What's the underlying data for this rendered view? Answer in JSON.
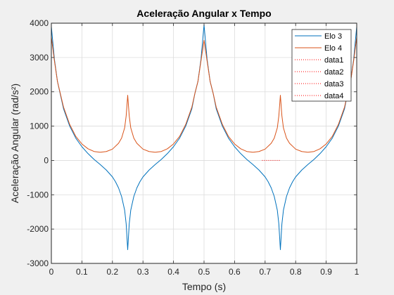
{
  "chart_data": {
    "type": "line",
    "title": "Aceleração Angular x Tempo",
    "xlabel": "Tempo (s)",
    "ylabel": "Aceleração Angular (rad/s²)",
    "xlim": [
      0,
      1
    ],
    "ylim": [
      -3000,
      4000
    ],
    "xticks": [
      0,
      0.1,
      0.2,
      0.3,
      0.4,
      0.5,
      0.6,
      0.7,
      0.8,
      0.9,
      1
    ],
    "xtick_labels": [
      "0",
      "0.1",
      "0.2",
      "0.3",
      "0.4",
      "0.5",
      "0.6",
      "0.7",
      "0.8",
      "0.9",
      "1"
    ],
    "yticks": [
      -3000,
      -2000,
      -1000,
      0,
      1000,
      2000,
      3000,
      4000
    ],
    "ytick_labels": [
      "-3000",
      "-2000",
      "-1000",
      "0",
      "1000",
      "2000",
      "3000",
      "4000"
    ],
    "grid": true,
    "legend_position": "top-right",
    "series": [
      {
        "name": "Elo 3",
        "color": "#0072BD",
        "style": "solid",
        "x": [
          0,
          0.01,
          0.02,
          0.04,
          0.06,
          0.08,
          0.1,
          0.12,
          0.14,
          0.16,
          0.18,
          0.2,
          0.21,
          0.22,
          0.23,
          0.24,
          0.245,
          0.25,
          0.255,
          0.26,
          0.27,
          0.28,
          0.29,
          0.3,
          0.32,
          0.34,
          0.36,
          0.38,
          0.4,
          0.42,
          0.44,
          0.46,
          0.47,
          0.48,
          0.49,
          0.5,
          0.51,
          0.52,
          0.53,
          0.54,
          0.56,
          0.58,
          0.6,
          0.62,
          0.64,
          0.66,
          0.68,
          0.7,
          0.71,
          0.72,
          0.73,
          0.74,
          0.745,
          0.75,
          0.755,
          0.76,
          0.77,
          0.78,
          0.79,
          0.8,
          0.82,
          0.84,
          0.86,
          0.88,
          0.9,
          0.92,
          0.94,
          0.96,
          0.97,
          0.98,
          0.99,
          1
        ],
        "y": [
          3900,
          2950,
          2300,
          1500,
          1000,
          650,
          400,
          200,
          30,
          -120,
          -280,
          -480,
          -620,
          -800,
          -1050,
          -1450,
          -1850,
          -2600,
          -1850,
          -1450,
          -1050,
          -800,
          -620,
          -480,
          -280,
          -120,
          30,
          200,
          400,
          650,
          1000,
          1500,
          1950,
          2300,
          2950,
          3950,
          2950,
          2300,
          1950,
          1500,
          1000,
          650,
          400,
          200,
          30,
          -120,
          -280,
          -480,
          -620,
          -800,
          -1050,
          -1450,
          -1850,
          -2600,
          -1850,
          -1450,
          -1050,
          -800,
          -620,
          -480,
          -280,
          -120,
          30,
          200,
          400,
          650,
          1000,
          1500,
          1950,
          2300,
          2950,
          3900
        ]
      },
      {
        "name": "Elo 4",
        "color": "#D95319",
        "style": "solid",
        "x": [
          0,
          0.01,
          0.02,
          0.04,
          0.06,
          0.08,
          0.1,
          0.12,
          0.14,
          0.16,
          0.18,
          0.2,
          0.22,
          0.23,
          0.24,
          0.245,
          0.25,
          0.255,
          0.26,
          0.27,
          0.28,
          0.3,
          0.32,
          0.34,
          0.36,
          0.38,
          0.4,
          0.42,
          0.44,
          0.46,
          0.47,
          0.48,
          0.49,
          0.5,
          0.51,
          0.52,
          0.53,
          0.54,
          0.56,
          0.58,
          0.6,
          0.62,
          0.64,
          0.66,
          0.68,
          0.7,
          0.72,
          0.73,
          0.74,
          0.745,
          0.75,
          0.755,
          0.76,
          0.77,
          0.78,
          0.8,
          0.82,
          0.84,
          0.86,
          0.88,
          0.9,
          0.92,
          0.94,
          0.96,
          0.97,
          0.98,
          0.99,
          1
        ],
        "y": [
          3600,
          2900,
          2300,
          1550,
          1050,
          700,
          480,
          340,
          260,
          240,
          260,
          330,
          500,
          650,
          950,
          1300,
          1900,
          1300,
          950,
          650,
          500,
          330,
          260,
          240,
          260,
          340,
          480,
          700,
          1050,
          1550,
          1950,
          2300,
          2900,
          3500,
          2900,
          2300,
          1950,
          1550,
          1050,
          700,
          480,
          340,
          260,
          240,
          260,
          330,
          500,
          650,
          950,
          1300,
          1900,
          1300,
          950,
          650,
          500,
          330,
          260,
          240,
          260,
          340,
          480,
          700,
          1050,
          1550,
          1950,
          2300,
          2900,
          3600
        ]
      },
      {
        "name": "data1",
        "color": "#FF0000",
        "style": "dotted",
        "x": [],
        "y": []
      },
      {
        "name": "data2",
        "color": "#FF0000",
        "style": "dotted",
        "x": [],
        "y": []
      },
      {
        "name": "data3",
        "color": "#FF0000",
        "style": "dotted",
        "x": [],
        "y": []
      },
      {
        "name": "data4",
        "color": "#FF0000",
        "style": "dotted",
        "x": [
          0.69,
          0.75
        ],
        "y": [
          0,
          0
        ]
      }
    ]
  }
}
